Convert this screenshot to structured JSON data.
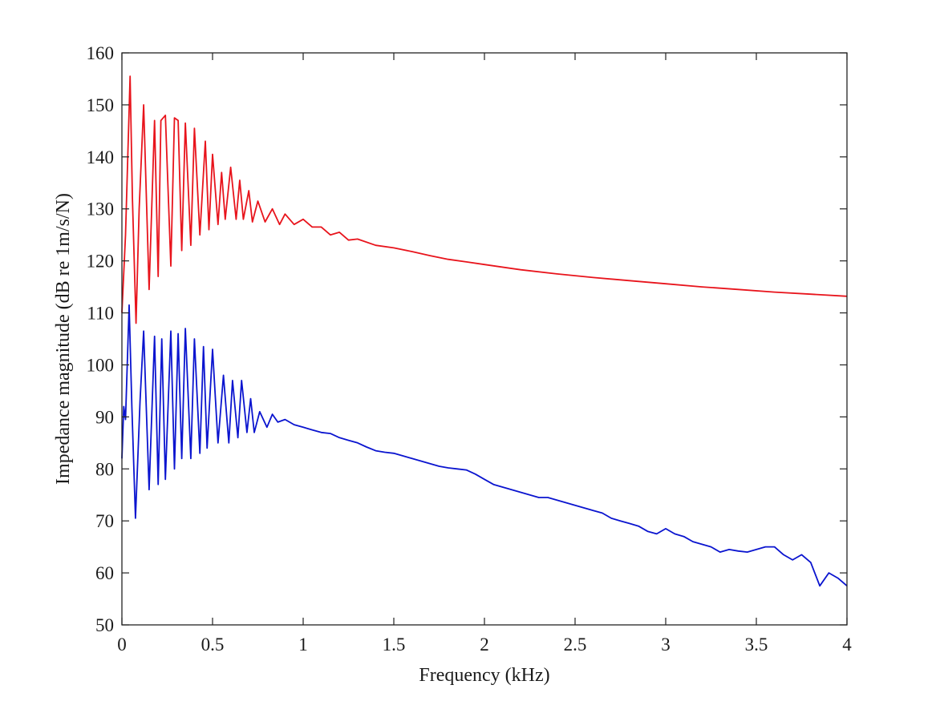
{
  "chart_data": {
    "type": "line",
    "title": "",
    "xlabel": "Frequency (kHz)",
    "ylabel": "Impedance magnitude (dB re 1m/s/N)",
    "xlim": [
      0,
      4
    ],
    "ylim": [
      50,
      160
    ],
    "grid": false,
    "x_ticks": [
      0,
      0.5,
      1,
      1.5,
      2,
      2.5,
      3,
      3.5,
      4
    ],
    "x_tick_labels": [
      "0",
      "0.5",
      "1",
      "1.5",
      "2",
      "2.5",
      "3",
      "3.5",
      "4"
    ],
    "y_ticks": [
      50,
      60,
      70,
      80,
      90,
      100,
      110,
      120,
      130,
      140,
      150,
      160
    ],
    "y_tick_labels": [
      "50",
      "60",
      "70",
      "80",
      "90",
      "100",
      "110",
      "120",
      "130",
      "140",
      "150",
      "160"
    ],
    "series": [
      {
        "name": "red-curve",
        "color": "#e8141c",
        "x": [
          0,
          0.02,
          0.045,
          0.058,
          0.078,
          0.095,
          0.12,
          0.15,
          0.18,
          0.2,
          0.215,
          0.24,
          0.27,
          0.29,
          0.31,
          0.33,
          0.35,
          0.38,
          0.4,
          0.43,
          0.46,
          0.48,
          0.5,
          0.53,
          0.55,
          0.57,
          0.6,
          0.63,
          0.65,
          0.67,
          0.7,
          0.72,
          0.75,
          0.79,
          0.83,
          0.87,
          0.9,
          0.95,
          1.0,
          1.05,
          1.1,
          1.15,
          1.2,
          1.25,
          1.3,
          1.4,
          1.5,
          1.6,
          1.7,
          1.8,
          1.9,
          2.0,
          2.2,
          2.4,
          2.6,
          2.8,
          3.0,
          3.2,
          3.4,
          3.6,
          3.8,
          4.0
        ],
        "values": [
          110,
          125,
          155.5,
          132,
          108,
          130,
          150,
          114.5,
          147,
          117,
          147,
          148,
          119,
          147.5,
          147,
          122,
          146.5,
          123,
          145.5,
          125,
          143,
          126,
          140.5,
          127,
          137,
          128,
          138,
          128,
          135.5,
          128,
          133.5,
          127.5,
          131.5,
          127.5,
          130,
          127,
          129,
          127,
          128,
          126.5,
          126.5,
          125,
          125.5,
          124,
          124.2,
          123,
          122.5,
          121.8,
          121,
          120.3,
          119.8,
          119.3,
          118.3,
          117.5,
          116.8,
          116.2,
          115.6,
          115,
          114.5,
          114,
          113.6,
          113.2
        ]
      },
      {
        "name": "blue-curve",
        "color": "#0a14cf",
        "x": [
          0,
          0.01,
          0.02,
          0.04,
          0.055,
          0.075,
          0.1,
          0.12,
          0.15,
          0.18,
          0.2,
          0.22,
          0.24,
          0.27,
          0.29,
          0.31,
          0.33,
          0.35,
          0.38,
          0.4,
          0.43,
          0.45,
          0.47,
          0.5,
          0.53,
          0.56,
          0.59,
          0.61,
          0.64,
          0.66,
          0.69,
          0.71,
          0.73,
          0.76,
          0.8,
          0.83,
          0.86,
          0.9,
          0.95,
          1.0,
          1.05,
          1.1,
          1.15,
          1.2,
          1.25,
          1.3,
          1.35,
          1.4,
          1.45,
          1.5,
          1.55,
          1.6,
          1.65,
          1.7,
          1.75,
          1.8,
          1.85,
          1.9,
          1.95,
          2.0,
          2.05,
          2.1,
          2.15,
          2.2,
          2.25,
          2.3,
          2.35,
          2.4,
          2.45,
          2.5,
          2.55,
          2.6,
          2.65,
          2.7,
          2.75,
          2.8,
          2.85,
          2.9,
          2.95,
          3.0,
          3.05,
          3.1,
          3.15,
          3.2,
          3.25,
          3.3,
          3.35,
          3.4,
          3.45,
          3.5,
          3.55,
          3.6,
          3.65,
          3.7,
          3.75,
          3.8,
          3.85,
          3.9,
          3.95,
          4.0
        ],
        "values": [
          82,
          92,
          89.5,
          111.5,
          92,
          70.5,
          93,
          106.5,
          76,
          105.5,
          77,
          105,
          78,
          106.5,
          80,
          106,
          82,
          107,
          82,
          105,
          83,
          103.5,
          84,
          103,
          85,
          98,
          85,
          97,
          86,
          97,
          87,
          93.5,
          87,
          91,
          88,
          90.5,
          89,
          89.5,
          88.5,
          88,
          87.5,
          87,
          86.8,
          86,
          85.5,
          85,
          84.2,
          83.5,
          83.2,
          83,
          82.5,
          82,
          81.5,
          81,
          80.5,
          80.2,
          80,
          79.8,
          79,
          78,
          77,
          76.5,
          76,
          75.5,
          75,
          74.5,
          74.5,
          74,
          73.5,
          73,
          72.5,
          72,
          71.5,
          70.5,
          70,
          69.5,
          69,
          68,
          67.5,
          68.5,
          67.5,
          67,
          66,
          65.5,
          65,
          64,
          64.5,
          64.2,
          64,
          64.5,
          65,
          65,
          63.5,
          62.5,
          63.5,
          62,
          57.5,
          60,
          59,
          57.5
        ]
      }
    ]
  }
}
